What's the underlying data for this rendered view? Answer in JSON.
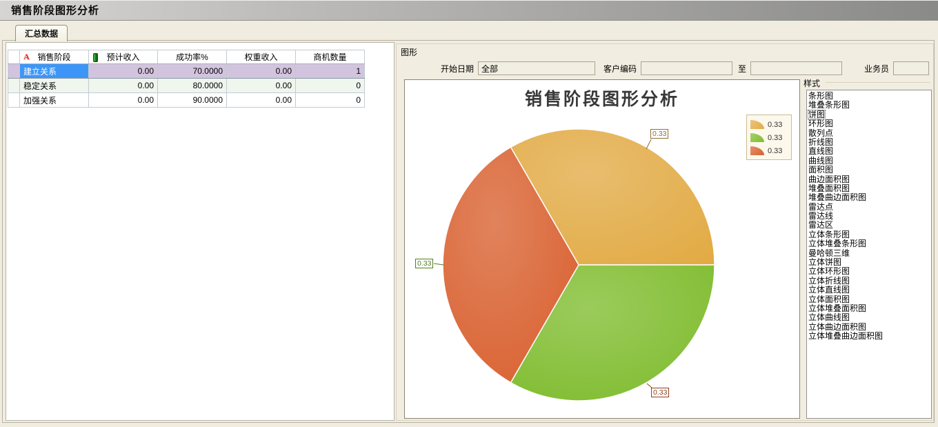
{
  "window": {
    "title": "销售阶段图形分析"
  },
  "tab": {
    "label": "汇总数据"
  },
  "table": {
    "columns": [
      "销售阶段",
      "预计收入",
      "成功率%",
      "权重收入",
      "商机数量"
    ],
    "header_icons": {
      "sort_letter": "A"
    },
    "rows": [
      {
        "cells": [
          "建立关系",
          "0.00",
          "70.0000",
          "0.00",
          "1"
        ],
        "selected": true
      },
      {
        "cells": [
          "稳定关系",
          "0.00",
          "80.0000",
          "0.00",
          "0"
        ],
        "selected": false
      },
      {
        "cells": [
          "加强关系",
          "0.00",
          "90.0000",
          "0.00",
          "0"
        ],
        "selected": false
      }
    ]
  },
  "graph_panel": {
    "group_label": "图形",
    "filters": {
      "start_date": {
        "label": "开始日期",
        "value": "全部"
      },
      "customer_code": {
        "label": "客户编码",
        "value": ""
      },
      "to": {
        "label": "至",
        "value": ""
      },
      "salesperson": {
        "label": "业务员",
        "value": ""
      }
    }
  },
  "chart_data": {
    "type": "pie",
    "title": "销售阶段图形分析",
    "values": [
      0.33,
      0.33,
      0.33
    ],
    "labels": [
      "0.33",
      "0.33",
      "0.33"
    ],
    "colors": [
      "#e2ab45",
      "#7fbc2e",
      "#d9602f"
    ],
    "start_angle_deg": -30,
    "direction": "clockwise",
    "legend": {
      "position": "top-right",
      "entries": [
        "0.33",
        "0.33",
        "0.33"
      ]
    }
  },
  "style_panel": {
    "group_label": "样式",
    "selected": "饼图",
    "items": [
      "条形图",
      "堆叠条形图",
      "饼图",
      "环形图",
      "散列点",
      "折线图",
      "直线图",
      "曲线图",
      "面积图",
      "曲边面积图",
      "堆叠面积图",
      "堆叠曲边面积图",
      "雷达点",
      "雷达线",
      "雷达区",
      "立体条形图",
      "立体堆叠条形图",
      "曼哈顿三维",
      "立体饼图",
      "立体环形图",
      "立体折线图",
      "立体直线图",
      "立体面积图",
      "立体堆叠面积图",
      "立体曲线图",
      "立体曲边面积图",
      "立体堆叠曲边面积图"
    ],
    "colors_note": {
      "selected_cell": "#3d96f7",
      "selected_row_bg": "#d2c4de",
      "alt_row_bg": "#eef6ee"
    }
  }
}
